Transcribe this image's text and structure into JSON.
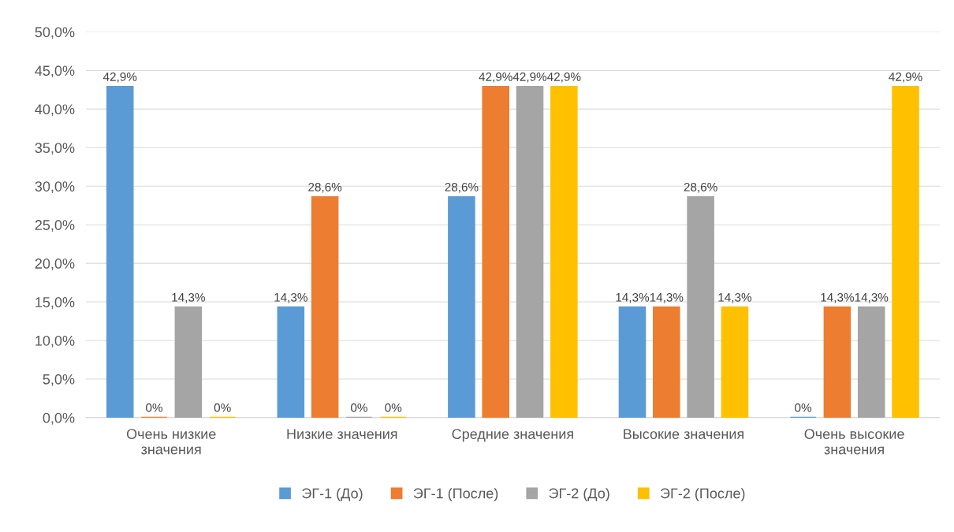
{
  "chart_data": {
    "type": "bar",
    "categories": [
      "Очень низкие\nзначения",
      "Низкие значения",
      "Средние значения",
      "Высокие значения",
      "Очень высокие\nзначения"
    ],
    "series": [
      {
        "name": "ЭГ-1 (До)",
        "color": "#5b9bd5",
        "values": [
          42.9,
          14.3,
          28.6,
          14.3,
          0
        ],
        "value_labels": [
          "42,9%",
          "14,3%",
          "28,6%",
          "14,3%",
          "0%"
        ]
      },
      {
        "name": "ЭГ-1 (После)",
        "color": "#ed7d31",
        "values": [
          0,
          28.6,
          42.9,
          14.3,
          14.3
        ],
        "value_labels": [
          "0%",
          "28,6%",
          "42,9%",
          "14,3%",
          "14,3%"
        ]
      },
      {
        "name": "ЭГ-2 (До)",
        "color": "#a5a5a5",
        "values": [
          14.3,
          0,
          42.9,
          28.6,
          14.3
        ],
        "value_labels": [
          "14,3%",
          "0%",
          "42,9%",
          "28,6%",
          "14,3%"
        ]
      },
      {
        "name": "ЭГ-2 (После)",
        "color": "#ffc000",
        "values": [
          0,
          0,
          42.9,
          14.3,
          42.9
        ],
        "value_labels": [
          "0%",
          "0%",
          "42,9%",
          "14,3%",
          "42,9%"
        ]
      }
    ],
    "ylim": [
      0,
      50
    ],
    "yticks": [
      {
        "value": 0,
        "label": "0,0%"
      },
      {
        "value": 5,
        "label": "5,0%"
      },
      {
        "value": 10,
        "label": "10,0%"
      },
      {
        "value": 15,
        "label": "15,0%"
      },
      {
        "value": 20,
        "label": "20,0%"
      },
      {
        "value": 25,
        "label": "25,0%"
      },
      {
        "value": 30,
        "label": "30,0%"
      },
      {
        "value": 35,
        "label": "35,0%"
      },
      {
        "value": 40,
        "label": "40,0%"
      },
      {
        "value": 45,
        "label": "45,0%"
      },
      {
        "value": 50,
        "label": "50,0%"
      }
    ],
    "grid": "y",
    "legend": "bottom"
  }
}
